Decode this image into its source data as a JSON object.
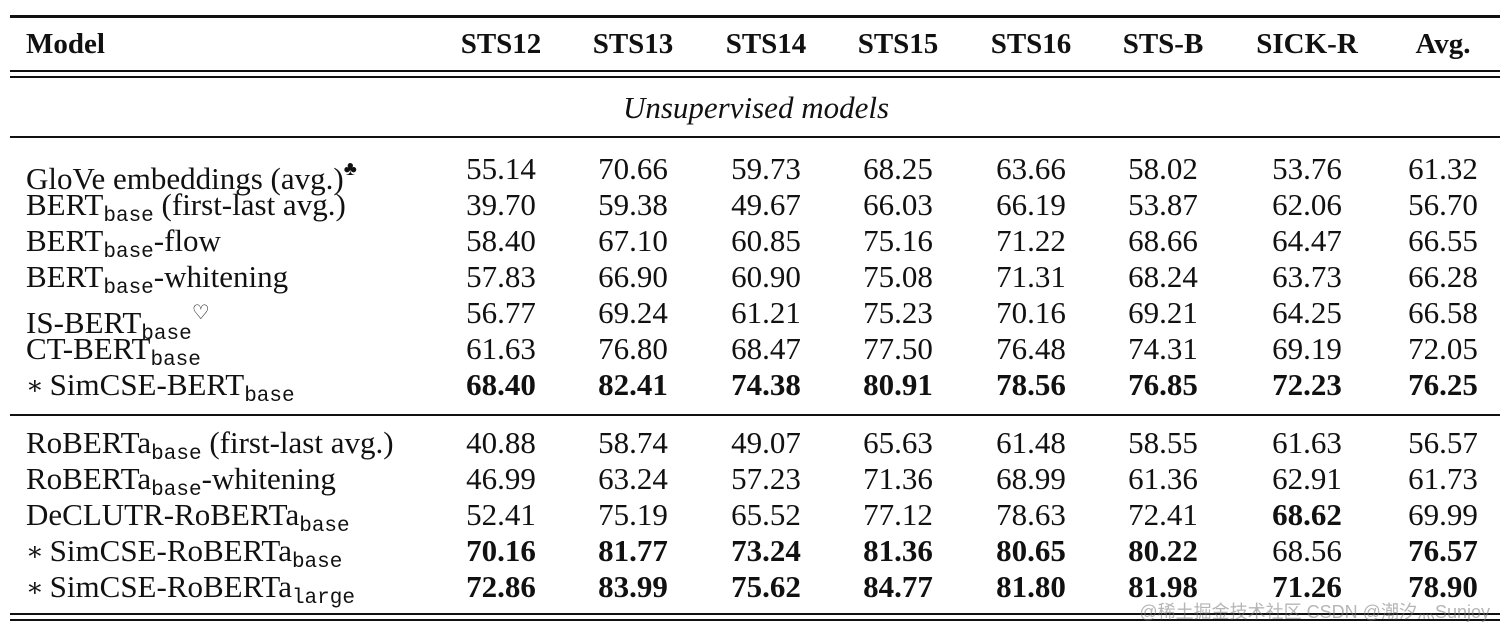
{
  "table": {
    "columns": [
      "Model",
      "STS12",
      "STS13",
      "STS14",
      "STS15",
      "STS16",
      "STS-B",
      "SICK-R",
      "Avg."
    ],
    "section_title": "Unsupervised models",
    "group1": [
      {
        "name": "GloVe embeddings (avg.)",
        "sub": "",
        "suffix": "",
        "mark": "♣",
        "star": "",
        "values": [
          "55.14",
          "70.66",
          "59.73",
          "68.25",
          "63.66",
          "58.02",
          "53.76",
          "61.32"
        ],
        "bold": [
          false,
          false,
          false,
          false,
          false,
          false,
          false,
          false
        ]
      },
      {
        "name": "BERT",
        "sub": "base",
        "suffix": " (first-last avg.)",
        "mark": "",
        "star": "",
        "values": [
          "39.70",
          "59.38",
          "49.67",
          "66.03",
          "66.19",
          "53.87",
          "62.06",
          "56.70"
        ],
        "bold": [
          false,
          false,
          false,
          false,
          false,
          false,
          false,
          false
        ]
      },
      {
        "name": "BERT",
        "sub": "base",
        "suffix": "-flow",
        "mark": "",
        "star": "",
        "values": [
          "58.40",
          "67.10",
          "60.85",
          "75.16",
          "71.22",
          "68.66",
          "64.47",
          "66.55"
        ],
        "bold": [
          false,
          false,
          false,
          false,
          false,
          false,
          false,
          false
        ]
      },
      {
        "name": "BERT",
        "sub": "base",
        "suffix": "-whitening",
        "mark": "",
        "star": "",
        "values": [
          "57.83",
          "66.90",
          "60.90",
          "75.08",
          "71.31",
          "68.24",
          "63.73",
          "66.28"
        ],
        "bold": [
          false,
          false,
          false,
          false,
          false,
          false,
          false,
          false
        ]
      },
      {
        "name": "IS-BERT",
        "sub": "base",
        "suffix": "",
        "mark": "♡",
        "star": "",
        "values": [
          "56.77",
          "69.24",
          "61.21",
          "75.23",
          "70.16",
          "69.21",
          "64.25",
          "66.58"
        ],
        "bold": [
          false,
          false,
          false,
          false,
          false,
          false,
          false,
          false
        ]
      },
      {
        "name": "CT-BERT",
        "sub": "base",
        "suffix": "",
        "mark": "",
        "star": "",
        "values": [
          "61.63",
          "76.80",
          "68.47",
          "77.50",
          "76.48",
          "74.31",
          "69.19",
          "72.05"
        ],
        "bold": [
          false,
          false,
          false,
          false,
          false,
          false,
          false,
          false
        ]
      },
      {
        "name": "SimCSE-BERT",
        "sub": "base",
        "suffix": "",
        "mark": "",
        "star": "∗",
        "values": [
          "68.40",
          "82.41",
          "74.38",
          "80.91",
          "78.56",
          "76.85",
          "72.23",
          "76.25"
        ],
        "bold": [
          true,
          true,
          true,
          true,
          true,
          true,
          true,
          true
        ]
      }
    ],
    "group2": [
      {
        "name": "RoBERTa",
        "sub": "base",
        "suffix": " (first-last avg.)",
        "mark": "",
        "star": "",
        "values": [
          "40.88",
          "58.74",
          "49.07",
          "65.63",
          "61.48",
          "58.55",
          "61.63",
          "56.57"
        ],
        "bold": [
          false,
          false,
          false,
          false,
          false,
          false,
          false,
          false
        ]
      },
      {
        "name": "RoBERTa",
        "sub": "base",
        "suffix": "-whitening",
        "mark": "",
        "star": "",
        "values": [
          "46.99",
          "63.24",
          "57.23",
          "71.36",
          "68.99",
          "61.36",
          "62.91",
          "61.73"
        ],
        "bold": [
          false,
          false,
          false,
          false,
          false,
          false,
          false,
          false
        ]
      },
      {
        "name": "DeCLUTR-RoBERTa",
        "sub": "base",
        "suffix": "",
        "mark": "",
        "star": "",
        "values": [
          "52.41",
          "75.19",
          "65.52",
          "77.12",
          "78.63",
          "72.41",
          "68.62",
          "69.99"
        ],
        "bold": [
          false,
          false,
          false,
          false,
          false,
          false,
          true,
          false
        ]
      },
      {
        "name": "SimCSE-RoBERTa",
        "sub": "base",
        "suffix": "",
        "mark": "",
        "star": "∗",
        "values": [
          "70.16",
          "81.77",
          "73.24",
          "81.36",
          "80.65",
          "80.22",
          "68.56",
          "76.57"
        ],
        "bold": [
          true,
          true,
          true,
          true,
          true,
          true,
          false,
          true
        ]
      },
      {
        "name": "SimCSE-RoBERTa",
        "sub": "large",
        "suffix": "",
        "mark": "",
        "star": "∗",
        "values": [
          "72.86",
          "83.99",
          "75.62",
          "84.77",
          "81.80",
          "81.98",
          "71.26",
          "78.90"
        ],
        "bold": [
          true,
          true,
          true,
          true,
          true,
          true,
          true,
          true
        ]
      }
    ]
  },
  "watermark": "@稀土掘金技术社区 CSDN @潮汐灬Sunjoy"
}
